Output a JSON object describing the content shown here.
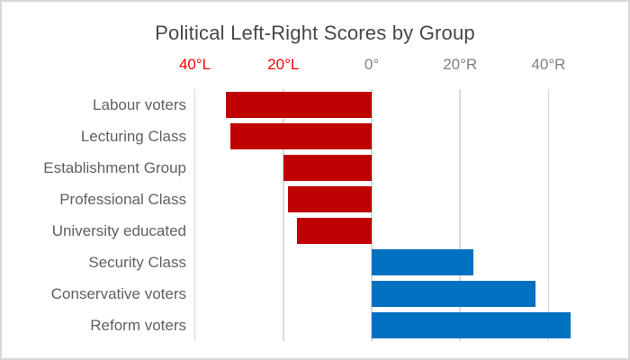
{
  "title": "Political Left-Right Scores by Group",
  "chart_data": {
    "type": "bar",
    "orientation": "horizontal",
    "title": "Political Left-Right Scores by Group",
    "categories": [
      "Labour voters",
      "Lecturing Class",
      "Establishment Group",
      "Professional Class",
      "University educated",
      "Security Class",
      "Conservative voters",
      "Reform voters"
    ],
    "values": [
      -33,
      -32,
      -20,
      -19,
      -17,
      23,
      37,
      45
    ],
    "bar_colors": {
      "negative": "#c00000",
      "positive": "#0070c0"
    },
    "x_axis": {
      "side": "top",
      "range": [
        -40,
        50
      ],
      "tick_interval": 20,
      "ticks": [
        {
          "value": -40,
          "label": "40°L"
        },
        {
          "value": -20,
          "label": "20°L"
        },
        {
          "value": 0,
          "label": "0°"
        },
        {
          "value": 20,
          "label": "20°R"
        },
        {
          "value": 40,
          "label": "40°R"
        }
      ],
      "tick_label_colors": {
        "negative": "#ff0000",
        "nonnegative": "#808080"
      },
      "grid": true,
      "gridline_color": "#d9d9d9"
    },
    "ylabel": "",
    "xlabel": "",
    "legend": "none",
    "background": "#ffffff",
    "frame_border_color": "#d8d8db",
    "title_color": "#474747",
    "category_label_color": "#616161"
  }
}
